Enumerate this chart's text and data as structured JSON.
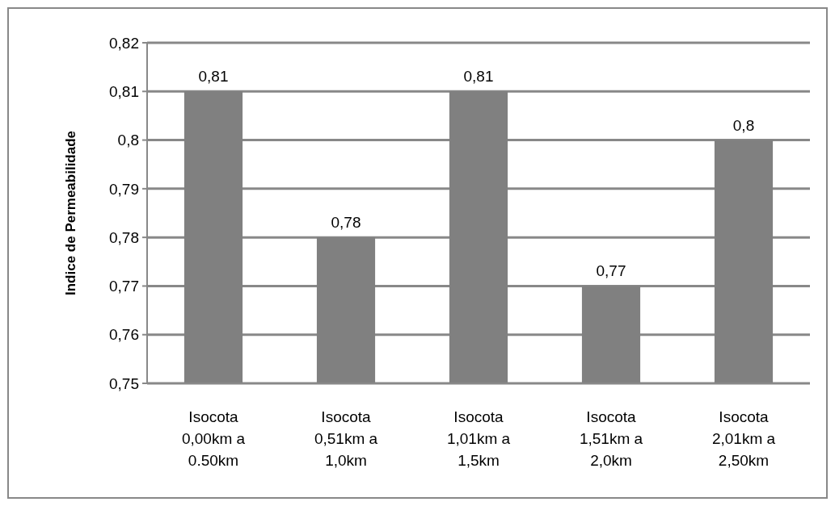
{
  "chart_data": {
    "type": "bar",
    "ylabel": "Indice de Permeabilidade",
    "categories": [
      "Isocota\n0,00km a\n0.50km",
      "Isocota\n0,51km a\n1,0km",
      "Isocota\n1,01km a\n1,5km",
      "Isocota\n1,51km a\n2,0km",
      "Isocota\n2,01km a\n2,50km"
    ],
    "values": [
      0.81,
      0.78,
      0.81,
      0.77,
      0.8
    ],
    "color": "#808080",
    "ylim": [
      0.75,
      0.82
    ],
    "yticks": [
      {
        "value": 0.75,
        "label": "0,75"
      },
      {
        "value": 0.76,
        "label": "0,76"
      },
      {
        "value": 0.77,
        "label": "0,77"
      },
      {
        "value": 0.78,
        "label": "0,78"
      },
      {
        "value": 0.79,
        "label": "0,79"
      },
      {
        "value": 0.8,
        "label": "0,8"
      },
      {
        "value": 0.81,
        "label": "0,81"
      },
      {
        "value": 0.82,
        "label": "0,82"
      }
    ],
    "grid": "y",
    "value_labels": [
      "0,81",
      "0,78",
      "0,81",
      "0,77",
      "0,8"
    ]
  }
}
